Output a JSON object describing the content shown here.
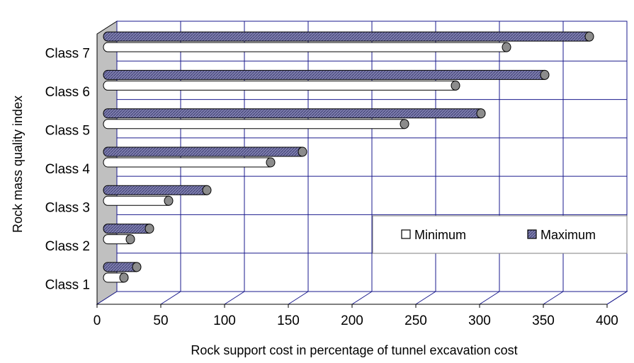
{
  "chart_data": {
    "type": "bar",
    "orientation": "horizontal",
    "categories": [
      "Class 1",
      "Class 2",
      "Class 3",
      "Class 4",
      "Class 5",
      "Class 6",
      "Class 7"
    ],
    "series": [
      {
        "name": "Minimum",
        "values": [
          10,
          15,
          45,
          125,
          230,
          270,
          310
        ],
        "color": "#ffffff"
      },
      {
        "name": "Maximum",
        "values": [
          20,
          30,
          75,
          150,
          290,
          340,
          375
        ],
        "color": "#7f7fb0"
      }
    ],
    "xlabel": "Rock support cost in percentage of tunnel excavation cost",
    "ylabel": "Rock mass quality index",
    "xlim": [
      0,
      400
    ],
    "xticks": [
      "0",
      "50",
      "100",
      "150",
      "200",
      "250",
      "300",
      "350",
      "400"
    ],
    "grid": true,
    "legend_position": "lower-right",
    "colors": {
      "gridline": "#1a1a8c",
      "wall": "#c0c0c0",
      "minimum_fill": "#ffffff",
      "maximum_fill": "#7f7fb0",
      "end_cap": "#8c8c8c"
    }
  }
}
